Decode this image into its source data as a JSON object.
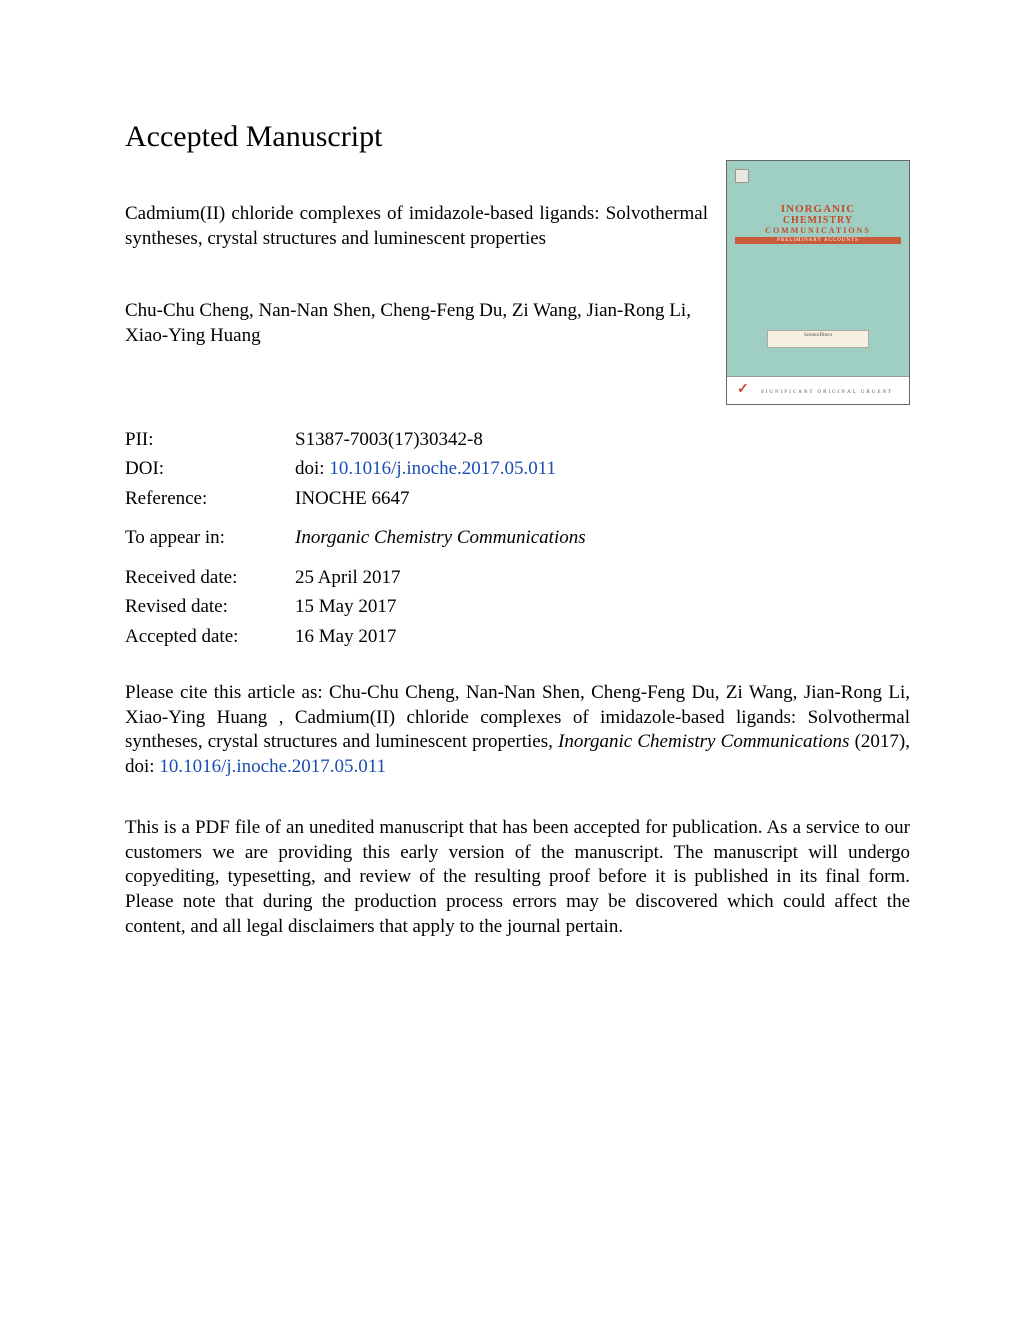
{
  "heading": "Accepted Manuscript",
  "article_title": "Cadmium(II) chloride complexes of imidazole-based ligands: Solvothermal syntheses, crystal structures and luminescent properties",
  "authors": "Chu-Chu Cheng, Nan-Nan Shen, Cheng-Feng Du, Zi Wang, Jian-Rong Li, Xiao-Ying Huang",
  "cover": {
    "title_line1": "INORGANIC",
    "title_line2": "CHEMISTRY",
    "title_line3": "COMMUNICATIONS",
    "subtitle": "PRELIMINARY ACCOUNTS",
    "sciencedirect": "ScienceDirect",
    "bottom_text": "SIGNIFICANT ORIGINAL URGENT",
    "bg_color": "#9fcfc2",
    "title_color": "#c44a2a"
  },
  "meta": {
    "pii_label": "PII:",
    "pii_value": "S1387-7003(17)30342-8",
    "doi_label": "DOI:",
    "doi_prefix": "doi: ",
    "doi_link": "10.1016/j.inoche.2017.05.011",
    "reference_label": "Reference:",
    "reference_value": "INOCHE 6647",
    "appear_label": "To appear in:",
    "appear_value": "Inorganic Chemistry Communications",
    "received_label": "Received date:",
    "received_value": "25 April 2017",
    "revised_label": "Revised date:",
    "revised_value": "15 May 2017",
    "accepted_label": "Accepted date:",
    "accepted_value": "16 May 2017"
  },
  "citation": {
    "prefix": "Please cite this article as: Chu-Chu Cheng, Nan-Nan Shen, Cheng-Feng Du, Zi Wang, Jian-Rong Li, Xiao-Ying Huang , Cadmium(II) chloride complexes of imidazole-based ligands: Solvothermal syntheses, crystal structures and luminescent properties, ",
    "journal": "Inorganic Chemistry Communications",
    "year": " (2017), doi: ",
    "doi_link": "10.1016/j.inoche.2017.05.011"
  },
  "disclaimer": "This is a PDF file of an unedited manuscript that has been accepted for publication. As a service to our customers we are providing this early version of the manuscript. The manuscript will undergo copyediting, typesetting, and review of the resulting proof before it is published in its final form. Please note that during the production process errors may be discovered which could affect the content, and all legal disclaimers that apply to the journal pertain.",
  "link_color": "#1a4db3"
}
